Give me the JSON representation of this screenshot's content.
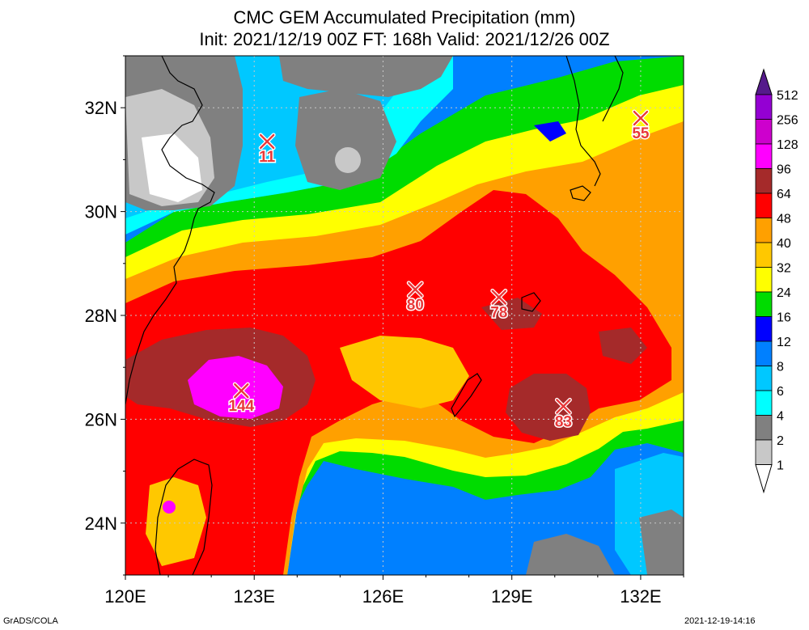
{
  "title_line1": "CMC GEM Accumulated Precipitation (mm)",
  "title_line2": "Init: 2021/12/19 00Z  FT: 168h  Valid: 2021/12/26 00Z",
  "footer_left": "GrADS/COLA",
  "footer_right": "2021-12-19-14:16",
  "map": {
    "lon_range": [
      120,
      133
    ],
    "lat_range": [
      23,
      33
    ],
    "lon_ticks": [
      {
        "value": 120,
        "label": "120E"
      },
      {
        "value": 123,
        "label": "123E"
      },
      {
        "value": 126,
        "label": "126E"
      },
      {
        "value": 129,
        "label": "129E"
      },
      {
        "value": 132,
        "label": "132E"
      }
    ],
    "lat_ticks": [
      {
        "value": 24,
        "label": "24N"
      },
      {
        "value": 26,
        "label": "26N"
      },
      {
        "value": 28,
        "label": "28N"
      },
      {
        "value": 30,
        "label": "30N"
      },
      {
        "value": 32,
        "label": "32N"
      }
    ],
    "grid": true,
    "markers": [
      {
        "lon": 122.7,
        "lat": 26.55,
        "value": "144"
      },
      {
        "lon": 126.75,
        "lat": 28.5,
        "value": "80"
      },
      {
        "lon": 128.7,
        "lat": 28.35,
        "value": "78"
      },
      {
        "lon": 130.2,
        "lat": 26.25,
        "value": "83"
      },
      {
        "lon": 123.3,
        "lat": 31.35,
        "value": "11"
      },
      {
        "lon": 132.0,
        "lat": 31.8,
        "value": "55"
      }
    ]
  },
  "legend": {
    "levels": [
      "1",
      "2",
      "4",
      "6",
      "8",
      "12",
      "16",
      "24",
      "32",
      "40",
      "48",
      "64",
      "96",
      "128",
      "256",
      "512"
    ],
    "colors": {
      "lt1": "#ffffff",
      "c1_2": "#c8c8c8",
      "c2_4": "#808080",
      "c4_6": "#00ffff",
      "c6_8": "#00c8ff",
      "c8_12": "#0080ff",
      "c12_16": "#0000ff",
      "c16_24": "#00dc00",
      "c24_32": "#ffff00",
      "c32_40": "#ffc800",
      "c40_48": "#ffa000",
      "c48_64": "#ff0000",
      "c64_96": "#a52a2a",
      "c96_128": "#ff00ff",
      "c128_256": "#cd00cd",
      "c256_512": "#9400d3",
      "gt512": "#551a8b"
    }
  }
}
